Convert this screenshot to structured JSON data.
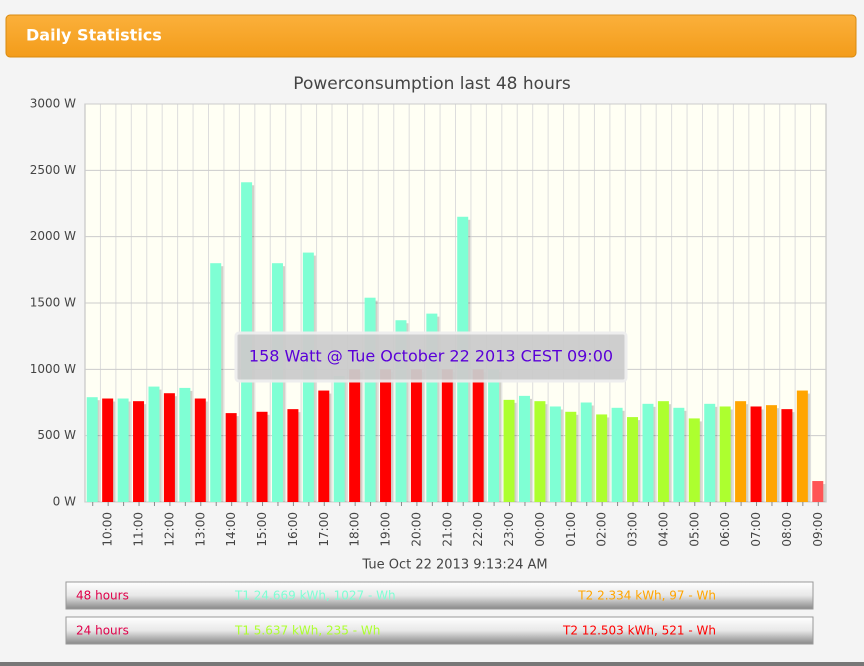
{
  "header": {
    "title": "Daily Statistics"
  },
  "chart_data": {
    "type": "bar",
    "title": "Powerconsumption last 48 hours",
    "categories": [
      null,
      "10:00",
      null,
      "11:00",
      null,
      "12:00",
      null,
      "13:00",
      null,
      "14:00",
      null,
      "15:00",
      null,
      "16:00",
      null,
      "17:00",
      null,
      "18:00",
      null,
      "19:00",
      null,
      "20:00",
      null,
      "21:00",
      null,
      "22:00",
      null,
      "23:00",
      null,
      "00:00",
      null,
      "01:00",
      null,
      "02:00",
      null,
      "03:00",
      null,
      "04:00",
      null,
      "05:00",
      null,
      "06:00",
      null,
      "07:00",
      null,
      "08:00",
      null,
      "09:00"
    ],
    "values": [
      790,
      780,
      780,
      760,
      870,
      820,
      860,
      780,
      1800,
      670,
      2410,
      680,
      1800,
      700,
      1880,
      840,
      950,
      1000,
      1540,
      1000,
      1370,
      1000,
      1420,
      1000,
      2150,
      1000,
      1000,
      770,
      800,
      760,
      720,
      680,
      750,
      660,
      710,
      640,
      740,
      760,
      710,
      630,
      740,
      720,
      760,
      720,
      730,
      700,
      840,
      158
    ],
    "colors": [
      "#7fffd4",
      "#ff0000",
      "#7fffd4",
      "#ff0000",
      "#7fffd4",
      "#ff0000",
      "#7fffd4",
      "#ff0000",
      "#7fffd4",
      "#ff0000",
      "#7fffd4",
      "#ff0000",
      "#7fffd4",
      "#ff0000",
      "#7fffd4",
      "#ff0000",
      "#7fffd4",
      "#ff0000",
      "#7fffd4",
      "#ff0000",
      "#7fffd4",
      "#ff0000",
      "#7fffd4",
      "#ff0000",
      "#7fffd4",
      "#ff0000",
      "#7fffd4",
      "#adff2f",
      "#7fffd4",
      "#adff2f",
      "#7fffd4",
      "#adff2f",
      "#7fffd4",
      "#adff2f",
      "#7fffd4",
      "#adff2f",
      "#7fffd4",
      "#adff2f",
      "#7fffd4",
      "#adff2f",
      "#7fffd4",
      "#adff2f",
      "#ffa500",
      "#ff0000",
      "#ffa500",
      "#ff0000",
      "#ffa500",
      "#ff5555"
    ],
    "ylim": [
      0,
      3000
    ],
    "yticks": [
      {
        "value": 0,
        "label": "0 W"
      },
      {
        "value": 500,
        "label": "500 W"
      },
      {
        "value": 1000,
        "label": "1000 W"
      },
      {
        "value": 1500,
        "label": "1500 W"
      },
      {
        "value": 2000,
        "label": "2000 W"
      },
      {
        "value": 2500,
        "label": "2500 W"
      },
      {
        "value": 3000,
        "label": "3000 W"
      }
    ],
    "grid": true,
    "tooltip": "158 Watt @ Tue October 22 2013 CEST 09:00",
    "xlabel": "Tue Oct 22 2013 9:13:24 AM"
  },
  "summary": [
    {
      "label": "48 hours",
      "t1": "T1 24.669 kWh, 1027 - Wh",
      "t1_color": "#7fffd4",
      "t2": "T2 2.334 kWh, 97 - Wh",
      "t2_color": "#ffa500"
    },
    {
      "label": "24 hours",
      "t1": "T1 5.637 kWh, 235 - Wh",
      "t1_color": "#adff2f",
      "t2": "T2 12.503 kWh, 521 - Wh",
      "t2_color": "#ff0000"
    }
  ]
}
